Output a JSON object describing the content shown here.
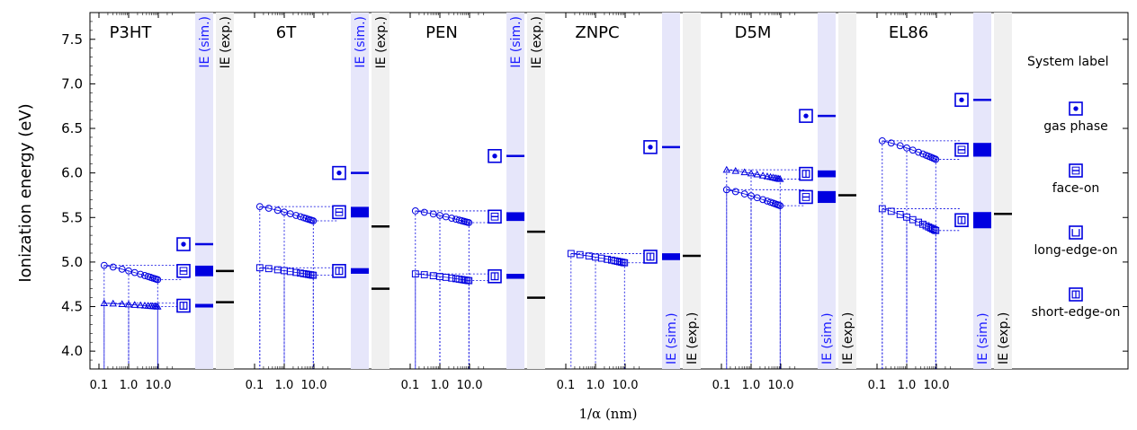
{
  "chart_data": {
    "type": "scatter",
    "ylabel": "Ionization energy (eV)",
    "xlabel": "1/α (nm)",
    "ylim": [
      3.8,
      7.8
    ],
    "yticks": [
      "4.0",
      "4.5",
      "5.0",
      "5.5",
      "6.0",
      "6.5",
      "7.0",
      "7.5"
    ],
    "xticks": [
      "0.1",
      "1.0",
      "10.0"
    ],
    "column_labels": {
      "sim": "IE (sim.)",
      "exp": "IE (exp.)"
    },
    "colors": {
      "sim": "#0000e0",
      "sim_band": "#e6e6fa",
      "exp_band": "#f0f0f0",
      "exp": "#000000"
    },
    "legend": {
      "title": "System label",
      "entries": [
        {
          "label": "gas phase",
          "marker": "gas"
        },
        {
          "label": "face-on",
          "marker": "face"
        },
        {
          "label": "long-edge-on",
          "marker": "long"
        },
        {
          "label": "short-edge-on",
          "marker": "short"
        }
      ]
    },
    "panels": [
      {
        "title": "P3HT",
        "gas": 5.2,
        "exp": [
          4.9,
          4.55
        ],
        "series": [
          {
            "marker": "circle",
            "start": 4.97,
            "end": 4.8,
            "final": 4.9,
            "final_marker": "face"
          },
          {
            "marker": "triangle",
            "start": 4.54,
            "end": 4.5,
            "final": 4.51,
            "final_marker": "short"
          }
        ]
      },
      {
        "title": "6T",
        "gas": 6.0,
        "exp": [
          5.4,
          4.7
        ],
        "series": [
          {
            "marker": "circle",
            "start": 5.63,
            "end": 5.46,
            "final": 5.56,
            "final_marker": "face"
          },
          {
            "marker": "square",
            "start": 4.94,
            "end": 4.85,
            "final": 4.9,
            "final_marker": "short"
          }
        ]
      },
      {
        "title": "PEN",
        "gas": 6.19,
        "exp": [
          5.34,
          4.6
        ],
        "series": [
          {
            "marker": "circle",
            "start": 5.58,
            "end": 5.44,
            "final": 5.51,
            "final_marker": "face"
          },
          {
            "marker": "square",
            "start": 4.87,
            "end": 4.79,
            "final": 4.84,
            "final_marker": "short"
          }
        ]
      },
      {
        "title": "ZNPC",
        "gas": 6.29,
        "exp": [
          5.07
        ],
        "series": [
          {
            "marker": "square",
            "start": 5.1,
            "end": 4.99,
            "final": 5.06,
            "final_marker": "short"
          }
        ]
      },
      {
        "title": "D5M",
        "gas": 6.64,
        "exp": [
          5.75
        ],
        "series": [
          {
            "marker": "triangle",
            "start": 6.04,
            "end": 5.93,
            "final": 5.99,
            "final_marker": "short"
          },
          {
            "marker": "circle",
            "start": 5.82,
            "end": 5.63,
            "final": 5.73,
            "final_marker": "face"
          }
        ]
      },
      {
        "title": "EL86",
        "gas": 6.82,
        "exp": [
          5.54
        ],
        "series": [
          {
            "marker": "circle",
            "start": 6.37,
            "end": 6.15,
            "final": 6.26,
            "final_marker": "face"
          },
          {
            "marker": "square",
            "start": 5.61,
            "end": 5.35,
            "final": 5.47,
            "final_marker": "short"
          }
        ]
      }
    ]
  }
}
